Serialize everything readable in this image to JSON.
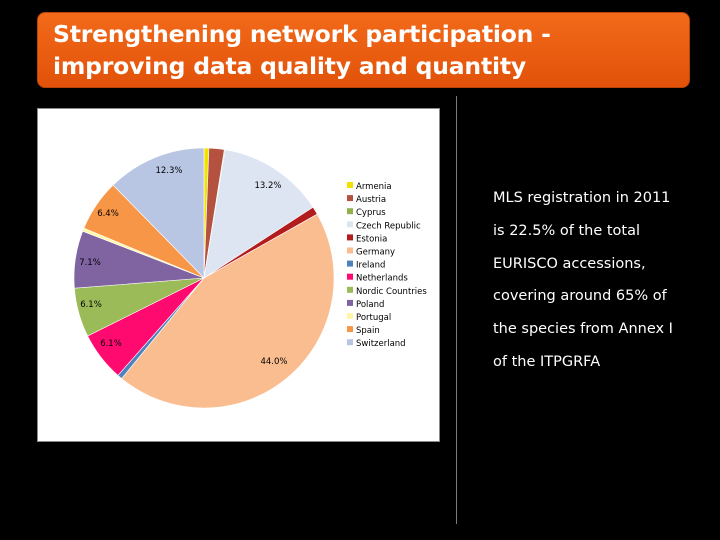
{
  "slide": {
    "title_line1": "Strengthening network participation -",
    "title_line2": "improving data quality and quantity"
  },
  "side_text": {
    "line1": "MLS registration in 2011",
    "line2": "is 22.5% of the total",
    "line3": "EURISCO accessions,",
    "line4": "covering around 65% of",
    "line5": "the species from Annex I",
    "line6": "of the ITPGRFA"
  },
  "chart_data": {
    "type": "pie",
    "title": "",
    "legend_position": "right",
    "slices": [
      {
        "label": "Armenia",
        "value": 0.6,
        "color": "#f2e200"
      },
      {
        "label": "Austria",
        "value": 1.9,
        "color": "#b4513f"
      },
      {
        "label": "Cyprus",
        "value": 0.1,
        "color": "#92b04e"
      },
      {
        "label": "Czech Republic",
        "value": 13.2,
        "color": "#dde4f2",
        "data_label": "13.2%"
      },
      {
        "label": "Estonia",
        "value": 1.0,
        "color": "#b31c1c"
      },
      {
        "label": "Germany",
        "value": 44.0,
        "color": "#f9bd8f",
        "data_label": "44.0%"
      },
      {
        "label": "Ireland",
        "value": 0.6,
        "color": "#4f81bd"
      },
      {
        "label": "Netherlands",
        "value": 6.1,
        "color": "#ff0b70",
        "data_label": "6.1%"
      },
      {
        "label": "Nordic Countries",
        "value": 6.1,
        "color": "#9bbb59",
        "data_label": "6.1%"
      },
      {
        "label": "Poland",
        "value": 7.1,
        "color": "#8064a2",
        "data_label": "7.1%"
      },
      {
        "label": "Portugal",
        "value": 0.4,
        "color": "#fff7a8"
      },
      {
        "label": "Spain",
        "value": 6.4,
        "color": "#f79646",
        "data_label": "6.4%"
      },
      {
        "label": "Switzerland",
        "value": 12.3,
        "color": "#b8c6e4",
        "data_label": "12.3%"
      }
    ]
  }
}
